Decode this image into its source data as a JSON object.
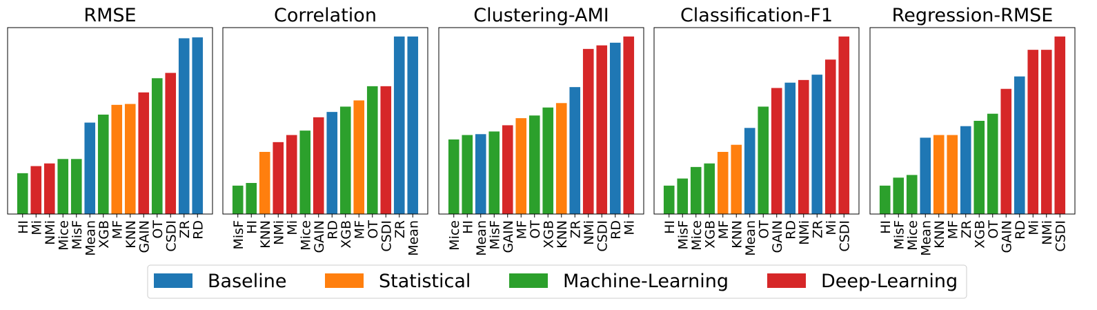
{
  "colors": {
    "Baseline": "#1f77b4",
    "Statistical": "#ff7f0e",
    "Machine-Learning": "#2ca02c",
    "Deep-Learning": "#d62728"
  },
  "legend": [
    {
      "label": "Baseline",
      "color": "#1f77b4"
    },
    {
      "label": "Statistical",
      "color": "#ff7f0e"
    },
    {
      "label": "Machine-Learning",
      "color": "#2ca02c"
    },
    {
      "label": "Deep-Learning",
      "color": "#d62728"
    }
  ],
  "chart_data": [
    {
      "type": "bar",
      "title": "RMSE",
      "ylim": [
        0,
        1.05
      ],
      "categories": [
        "HI",
        "Mi",
        "NMi",
        "Mice",
        "MisF",
        "Mean",
        "XGB",
        "MF",
        "KNN",
        "GAIN",
        "OT",
        "CSDI",
        "ZR",
        "RD"
      ],
      "groups": [
        "Machine-Learning",
        "Deep-Learning",
        "Deep-Learning",
        "Machine-Learning",
        "Machine-Learning",
        "Baseline",
        "Machine-Learning",
        "Statistical",
        "Statistical",
        "Deep-Learning",
        "Machine-Learning",
        "Deep-Learning",
        "Baseline",
        "Baseline"
      ],
      "values": [
        0.23,
        0.27,
        0.285,
        0.31,
        0.31,
        0.515,
        0.56,
        0.615,
        0.62,
        0.685,
        0.765,
        0.795,
        0.99,
        0.995
      ]
    },
    {
      "type": "bar",
      "title": "Correlation",
      "ylim": [
        0,
        1.05
      ],
      "categories": [
        "MisF",
        "HI",
        "KNN",
        "NMi",
        "Mi",
        "Mice",
        "GAIN",
        "RD",
        "XGB",
        "MF",
        "OT",
        "CSDI",
        "ZR",
        "Mean"
      ],
      "groups": [
        "Machine-Learning",
        "Machine-Learning",
        "Statistical",
        "Deep-Learning",
        "Deep-Learning",
        "Machine-Learning",
        "Deep-Learning",
        "Baseline",
        "Machine-Learning",
        "Statistical",
        "Machine-Learning",
        "Deep-Learning",
        "Baseline",
        "Baseline"
      ],
      "values": [
        0.16,
        0.175,
        0.35,
        0.405,
        0.445,
        0.47,
        0.545,
        0.575,
        0.605,
        0.64,
        0.72,
        0.72,
        1.0,
        1.0
      ]
    },
    {
      "type": "bar",
      "title": "Clustering-AMI",
      "ylim": [
        0,
        1.05
      ],
      "categories": [
        "Mice",
        "HI",
        "Mean",
        "MisF",
        "GAIN",
        "MF",
        "OT",
        "XGB",
        "KNN",
        "ZR",
        "NMi",
        "CSDI",
        "RD",
        "Mi"
      ],
      "groups": [
        "Machine-Learning",
        "Machine-Learning",
        "Baseline",
        "Machine-Learning",
        "Deep-Learning",
        "Statistical",
        "Machine-Learning",
        "Machine-Learning",
        "Statistical",
        "Baseline",
        "Deep-Learning",
        "Deep-Learning",
        "Baseline",
        "Deep-Learning"
      ],
      "values": [
        0.42,
        0.445,
        0.45,
        0.465,
        0.5,
        0.54,
        0.555,
        0.6,
        0.625,
        0.715,
        0.93,
        0.95,
        0.965,
        1.0
      ]
    },
    {
      "type": "bar",
      "title": "Classification-F1",
      "ylim": [
        0,
        1.05
      ],
      "categories": [
        "HI",
        "MisF",
        "Mice",
        "XGB",
        "MF",
        "KNN",
        "Mean",
        "OT",
        "GAIN",
        "RD",
        "NMi",
        "ZR",
        "Mi",
        "CSDI"
      ],
      "groups": [
        "Machine-Learning",
        "Machine-Learning",
        "Machine-Learning",
        "Machine-Learning",
        "Statistical",
        "Statistical",
        "Baseline",
        "Machine-Learning",
        "Deep-Learning",
        "Baseline",
        "Deep-Learning",
        "Baseline",
        "Deep-Learning",
        "Deep-Learning"
      ],
      "values": [
        0.16,
        0.2,
        0.265,
        0.285,
        0.35,
        0.39,
        0.485,
        0.605,
        0.71,
        0.74,
        0.755,
        0.785,
        0.87,
        1.0
      ]
    },
    {
      "type": "bar",
      "title": "Regression-RMSE",
      "ylim": [
        0,
        1.05
      ],
      "categories": [
        "HI",
        "MisF",
        "Mice",
        "Mean",
        "KNN",
        "MF",
        "ZR",
        "XGB",
        "OT",
        "GAIN",
        "RD",
        "Mi",
        "NMi",
        "CSDI"
      ],
      "groups": [
        "Machine-Learning",
        "Machine-Learning",
        "Machine-Learning",
        "Baseline",
        "Statistical",
        "Statistical",
        "Baseline",
        "Machine-Learning",
        "Machine-Learning",
        "Deep-Learning",
        "Baseline",
        "Deep-Learning",
        "Deep-Learning",
        "Deep-Learning"
      ],
      "values": [
        0.16,
        0.205,
        0.22,
        0.43,
        0.445,
        0.445,
        0.495,
        0.525,
        0.565,
        0.705,
        0.775,
        0.925,
        0.925,
        1.0
      ]
    }
  ]
}
